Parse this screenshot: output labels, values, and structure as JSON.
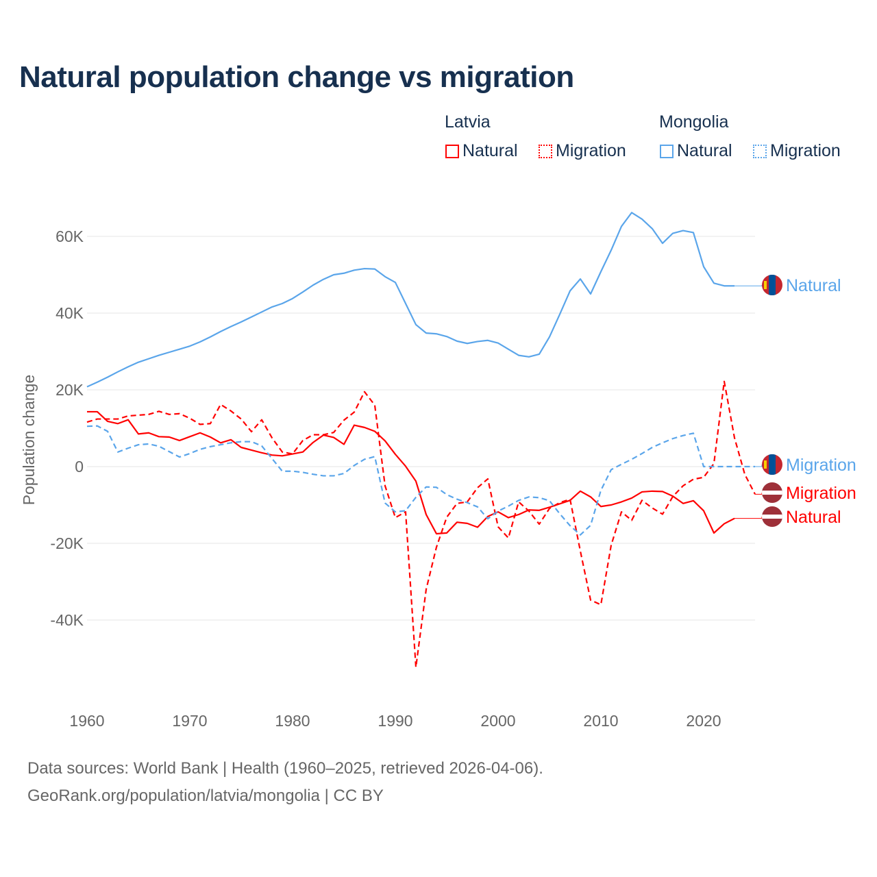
{
  "title": "Natural population change vs migration",
  "legend": {
    "groups": [
      {
        "name": "Latvia",
        "items": [
          "Natural",
          "Migration"
        ]
      },
      {
        "name": "Mongolia",
        "items": [
          "Natural",
          "Migration"
        ]
      }
    ]
  },
  "footer": {
    "line1": "Data sources: World Bank | Health (1960–2025, retrieved 2026-04-06).",
    "line2": "GeoRank.org/population/latvia/mongolia | CC BY"
  },
  "colors": {
    "latvia": "#ff0000",
    "mongolia": "#5aa5ea",
    "grid": "#e6e6e6",
    "axis_text": "#666666"
  },
  "chart_data": {
    "type": "line",
    "title": "Natural population change vs migration",
    "xlabel": "",
    "ylabel": "Population change",
    "xlim": [
      1960,
      2025
    ],
    "ylim": [
      -55000,
      70000
    ],
    "x_ticks": [
      1960,
      1970,
      1980,
      1990,
      2000,
      2010,
      2020
    ],
    "x_tick_labels": [
      "1960",
      "1970",
      "1980",
      "1990",
      "2000",
      "2010",
      "2020"
    ],
    "y_ticks": [
      60000,
      40000,
      20000,
      0,
      -20000,
      -40000
    ],
    "y_tick_labels": [
      "60K",
      "40K",
      "20K",
      "0",
      "-20K",
      "-40K"
    ],
    "grid": true,
    "legend_position": "top-right",
    "series": [
      {
        "name": "Natural",
        "country": "Latvia",
        "color": "#ff0000",
        "dash": "solid",
        "end_label": "Natural",
        "start_year": 1960,
        "values": [
          14300,
          14300,
          11800,
          11200,
          12200,
          8500,
          8800,
          7800,
          7700,
          6800,
          7800,
          8800,
          7700,
          6200,
          7000,
          5000,
          4300,
          3600,
          3000,
          2800,
          3300,
          3800,
          6300,
          8200,
          7600,
          5800,
          10800,
          10200,
          9200,
          6700,
          3200,
          100,
          -3800,
          -12500,
          -17500,
          -17300,
          -14500,
          -14800,
          -15800,
          -13000,
          -11800,
          -13300,
          -12500,
          -11300,
          -11400,
          -10600,
          -9700,
          -8800,
          -6400,
          -7900,
          -10400,
          -10000,
          -9200,
          -8200,
          -6600,
          -6400,
          -6500,
          -7700,
          -9600,
          -8900,
          -11500,
          -17300,
          -14900,
          -13500
        ]
      },
      {
        "name": "Migration",
        "country": "Latvia",
        "color": "#ff0000",
        "dash": "dashed",
        "end_label": "Migration",
        "start_year": 1960,
        "values": [
          11600,
          12400,
          12400,
          12400,
          13200,
          13400,
          13600,
          14400,
          13600,
          13800,
          12600,
          11000,
          11200,
          16200,
          14500,
          12400,
          9100,
          12200,
          7500,
          3800,
          3300,
          6800,
          8300,
          8300,
          8900,
          12100,
          14200,
          19500,
          16000,
          -5000,
          -13300,
          -11800,
          -52300,
          -32000,
          -21000,
          -13200,
          -9600,
          -9200,
          -5500,
          -3200,
          -15700,
          -18600,
          -9200,
          -11600,
          -15000,
          -10900,
          -9400,
          -8500,
          -22000,
          -34800,
          -36000,
          -20500,
          -11800,
          -14000,
          -8800,
          -10800,
          -12400,
          -7800,
          -5000,
          -3300,
          -2800,
          800,
          22200,
          7500,
          -2000,
          -7200
        ]
      },
      {
        "name": "Natural",
        "country": "Mongolia",
        "color": "#5aa5ea",
        "dash": "solid",
        "end_label": "Natural",
        "start_year": 1960,
        "values": [
          20800,
          22000,
          23300,
          24700,
          26000,
          27200,
          28100,
          29000,
          29800,
          30600,
          31400,
          32500,
          33800,
          35200,
          36500,
          37700,
          39000,
          40300,
          41600,
          42500,
          43800,
          45500,
          47300,
          48800,
          50000,
          50400,
          51200,
          51600,
          51500,
          49500,
          48000,
          42500,
          37000,
          34800,
          34600,
          33900,
          32700,
          32100,
          32600,
          32900,
          32200,
          30600,
          29000,
          28600,
          29300,
          33800,
          39700,
          45800,
          48900,
          45000,
          50800,
          56400,
          62600,
          66200,
          64500,
          62000,
          58200,
          60800,
          61500,
          61000,
          52100,
          47800,
          47100,
          47100
        ]
      },
      {
        "name": "Migration",
        "country": "Mongolia",
        "color": "#5aa5ea",
        "dash": "dashed",
        "end_label": "Migration",
        "start_year": 1960,
        "values": [
          10500,
          10600,
          9200,
          3800,
          4800,
          5700,
          5900,
          5300,
          3900,
          2500,
          3400,
          4500,
          5200,
          5700,
          6200,
          6500,
          6500,
          5400,
          2100,
          -1200,
          -1200,
          -1500,
          -2000,
          -2400,
          -2400,
          -1800,
          300,
          1900,
          2600,
          -9500,
          -11800,
          -11500,
          -8000,
          -5300,
          -5400,
          -7300,
          -8500,
          -9400,
          -10500,
          -13600,
          -11600,
          -10300,
          -8800,
          -7900,
          -8100,
          -8900,
          -12300,
          -15400,
          -17800,
          -15300,
          -6200,
          -800,
          600,
          1900,
          3400,
          5000,
          6200,
          7300,
          8100,
          8700,
          0,
          0,
          0,
          0,
          0,
          0
        ]
      }
    ]
  }
}
